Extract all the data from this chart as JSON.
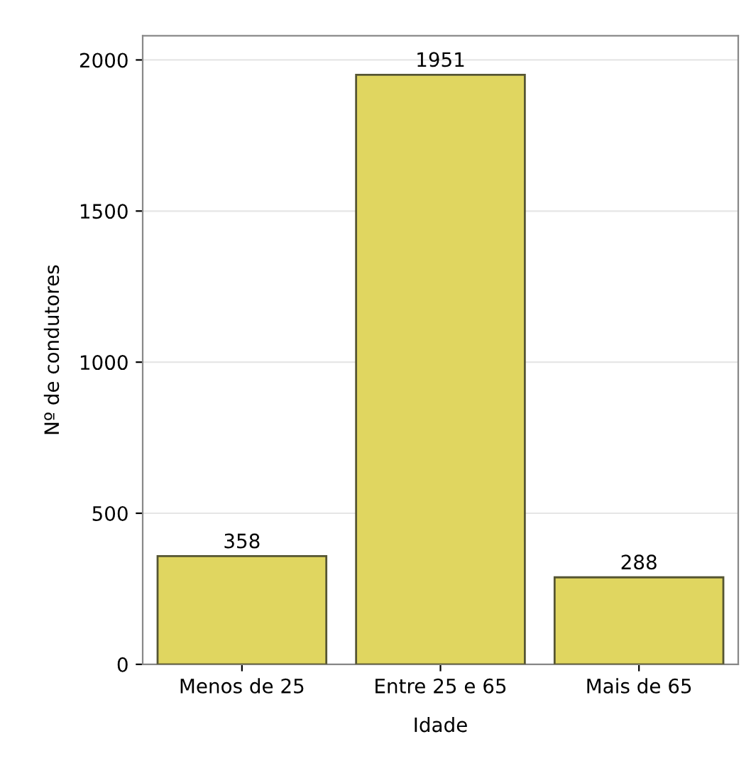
{
  "chart_data": {
    "type": "bar",
    "xlabel": "Idade",
    "ylabel": "Nº de condutores",
    "categories": [
      "Menos de 25",
      "Entre 25 e 65",
      "Mais de 65"
    ],
    "values": [
      358,
      1951,
      288
    ],
    "color": "#e0d660",
    "ylim": [
      0,
      2080
    ],
    "yticks": [
      0,
      500,
      1000,
      1500,
      2000
    ],
    "grid": "y",
    "data_labels": true
  }
}
